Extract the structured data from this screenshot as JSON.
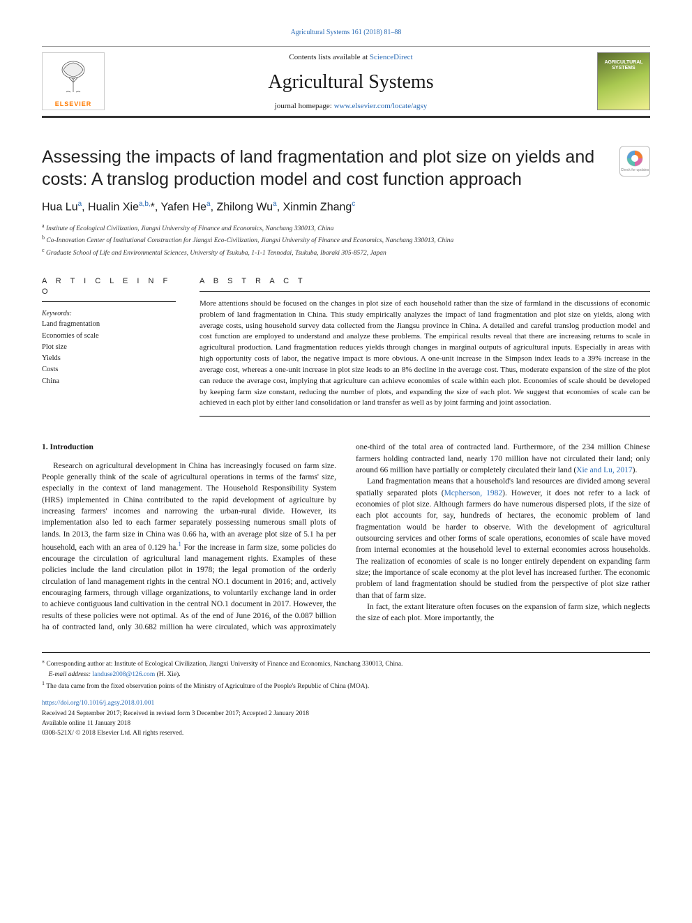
{
  "header": {
    "citation": "Agricultural Systems 161 (2018) 81–88",
    "contents_prefix": "Contents lists available at ",
    "contents_link": "ScienceDirect",
    "journal": "Agricultural Systems",
    "homepage_prefix": "journal homepage: ",
    "homepage_link": "www.elsevier.com/locate/agsy",
    "publisher_name": "ELSEVIER",
    "cover_title_line1": "AGRICULTURAL",
    "cover_title_line2": "SYSTEMS"
  },
  "title": "Assessing the impacts of land fragmentation and plot size on yields and costs: A translog production model and cost function approach",
  "check_badge": "Check for updates",
  "authors_html": "Hua Lu<sup>a</sup>, Hualin Xie<sup>a,b,</sup>*, Yafen He<sup>a</sup>, Zhilong Wu<sup>a</sup>, Xinmin Zhang<sup>c</sup>",
  "affiliations": {
    "a": "Institute of Ecological Civilization, Jiangxi University of Finance and Economics, Nanchang 330013, China",
    "b": "Co-Innovation Center of Institutional Construction for Jiangxi Eco-Civilization, Jiangxi University of Finance and Economics, Nanchang 330013, China",
    "c": "Graduate School of Life and Environmental Sciences, University of Tsukuba, 1-1-1 Tennodai, Tsukuba, Ibaraki 305-8572, Japan"
  },
  "info": {
    "heading": "A R T I C L E   I N F O",
    "keywords_head": "Keywords:",
    "keywords": [
      "Land fragmentation",
      "Economies of scale",
      "Plot size",
      "Yields",
      "Costs",
      "China"
    ]
  },
  "abstract": {
    "heading": "A B S T R A C T",
    "text": "More attentions should be focused on the changes in plot size of each household rather than the size of farmland in the discussions of economic problem of land fragmentation in China. This study empirically analyzes the impact of land fragmentation and plot size on yields, along with average costs, using household survey data collected from the Jiangsu province in China. A detailed and careful translog production model and cost function are employed to understand and analyze these problems. The empirical results reveal that there are increasing returns to scale in agricultural production. Land fragmentation reduces yields through changes in marginal outputs of agricultural inputs. Especially in areas with high opportunity costs of labor, the negative impact is more obvious. A one-unit increase in the Simpson index leads to a 39% increase in the average cost, whereas a one-unit increase in plot size leads to an 8% decline in the average cost. Thus, moderate expansion of the size of the plot can reduce the average cost, implying that agriculture can achieve economies of scale within each plot. Economies of scale should be developed by keeping farm size constant, reducing the number of plots, and expanding the size of each plot. We suggest that economies of scale can be achieved in each plot by either land consolidation or land transfer as well as by joint farming and joint association."
  },
  "body": {
    "section_heading": "1.  Introduction",
    "p1": "Research on agricultural development in China has increasingly focused on farm size. People generally think of the scale of agricultural operations in terms of the farms' size, especially in the context of land management. The Household Responsibility System (HRS) implemented in China contributed to the rapid development of agriculture by increasing farmers' incomes and narrowing the urban-rural divide. However, its implementation also led to each farmer separately possessing numerous small plots of lands. In 2013, the farm size in China was 0.66 ha, with an average plot size of 5.1 ha per household, each with an area of 0.129 ha.",
    "p1_tail": " For the increase in farm size, some policies do encourage the circulation of agricultural land management rights. Examples of these policies include the land circulation pilot in 1978; the legal promotion of the orderly circulation of land management rights in the central NO.1 document in 2016; and, actively encouraging farmers, through village organizations, to voluntarily exchange land in order to achieve contiguous land cultivation in the central NO.1 document in 2017. However, the results of these policies were not optimal. As of the end of June 2016, of the 0.087 billion ha of contracted land, only ",
    "p2": "30.682 million ha were circulated, which was approximately one-third of the total area of contracted land. Furthermore, of the 234 million Chinese farmers holding contracted land, nearly 170 million have not circulated their land; only around 66 million have partially or completely circulated their land (",
    "p2_cite": "Xie and Lu, 2017",
    "p2_tail": ").",
    "p3": "Land fragmentation means that a household's land resources are divided among several spatially separated plots (",
    "p3_cite": "Mcpherson, 1982",
    "p3_tail": "). However, it does not refer to a lack of economies of plot size. Although farmers do have numerous dispersed plots, if the size of each plot accounts for, say, hundreds of hectares, the economic problem of land fragmentation would be harder to observe. With the development of agricultural outsourcing services and other forms of scale operations, economies of scale have moved from internal economies at the household level to external economies across households. The realization of economies of scale is no longer entirely dependent on expanding farm size; the importance of scale economy at the plot level has increased further. The economic problem of land fragmentation should be studied from the perspective of plot size rather than that of farm size.",
    "p4": "In fact, the extant literature often focuses on the expansion of farm size, which neglects the size of each plot. More importantly, the"
  },
  "footnotes": {
    "corresponding": "Corresponding author at: Institute of Ecological Civilization, Jiangxi University of Finance and Economics, Nanchang 330013, China.",
    "email_label": "E-mail address: ",
    "email": "landuse2008@126.com",
    "email_name": " (H. Xie).",
    "note1": "The data came from the fixed observation points of the Ministry of Agriculture of the People's Republic of China (MOA)."
  },
  "pubinfo": {
    "doi": "https://doi.org/10.1016/j.agsy.2018.01.001",
    "received": "Received 24 September 2017; Received in revised form 3 December 2017; Accepted 2 January 2018",
    "available": "Available online 11 January 2018",
    "copyright": "0308-521X/ © 2018 Elsevier Ltd. All rights reserved."
  },
  "colors": {
    "link": "#2a6bb5",
    "text": "#1a1a1a",
    "publisher_orange": "#ff7b00",
    "cover_green_dark": "#5a6b2e",
    "cover_green_light": "#a8c850",
    "cover_yellow": "#f0f090",
    "badge_orange": "#f47d30",
    "badge_blue": "#5aa0d8",
    "badge_pink": "#d96aa8",
    "badge_teal": "#5abfb0"
  }
}
